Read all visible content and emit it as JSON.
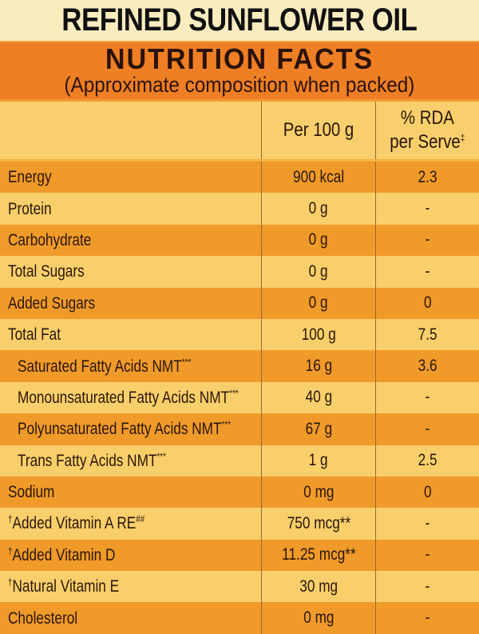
{
  "product_title": "REFINED SUNFLOWER OIL",
  "panel": {
    "heading": "NUTRITION FACTS",
    "subheading": "(Approximate composition when packed)"
  },
  "colors": {
    "title_band": "#fbecbf",
    "heading_band": "#ef7f24",
    "row_dark": "#f09a2a",
    "row_light": "#f9cf6b"
  },
  "table": {
    "columns": [
      "",
      "Per 100 g",
      "% RDA per Serve‡"
    ],
    "header": {
      "col2": "Per 100 g",
      "col3_line1": "% RDA",
      "col3_line2": "per Serve",
      "col3_mark": "‡"
    },
    "rows": [
      {
        "prefix": "",
        "nutrient": "Energy",
        "suffix": "",
        "per_100g": "900 kcal",
        "rda": "2.3"
      },
      {
        "prefix": "",
        "nutrient": "Protein",
        "suffix": "",
        "per_100g": "0 g",
        "rda": "-"
      },
      {
        "prefix": "",
        "nutrient": "Carbohydrate",
        "suffix": "",
        "per_100g": "0 g",
        "rda": "-"
      },
      {
        "prefix": "",
        "nutrient": "Total Sugars",
        "suffix": "",
        "per_100g": "0 g",
        "rda": "-"
      },
      {
        "prefix": "",
        "nutrient": "Added Sugars",
        "suffix": "",
        "per_100g": "0 g",
        "rda": "0"
      },
      {
        "prefix": "",
        "nutrient": "Total Fat",
        "suffix": "",
        "per_100g": "100 g",
        "rda": "7.5"
      },
      {
        "prefix": "",
        "nutrient": "Saturated Fatty Acids NMT",
        "suffix": "***",
        "per_100g": "16 g",
        "rda": "3.6"
      },
      {
        "prefix": "",
        "nutrient": "Monounsaturated Fatty Acids NMT",
        "suffix": "***",
        "per_100g": "40 g",
        "rda": "-"
      },
      {
        "prefix": "",
        "nutrient": "Polyunsaturated Fatty Acids NMT",
        "suffix": "***",
        "per_100g": "67 g",
        "rda": "-"
      },
      {
        "prefix": "",
        "nutrient": "Trans Fatty Acids NMT",
        "suffix": "***",
        "per_100g": "1 g",
        "rda": "2.5"
      },
      {
        "prefix": "",
        "nutrient": "Sodium",
        "suffix": "",
        "per_100g": "0 mg",
        "rda": "0"
      },
      {
        "prefix": "†",
        "nutrient": "Added Vitamin A RE",
        "suffix": "##",
        "per_100g": "750 mcg**",
        "rda": "-"
      },
      {
        "prefix": "†",
        "nutrient": "Added Vitamin D",
        "suffix": "",
        "per_100g": "11.25 mcg**",
        "rda": "-"
      },
      {
        "prefix": "†",
        "nutrient": "Natural Vitamin E",
        "suffix": "",
        "per_100g": "30 mg",
        "rda": "-"
      },
      {
        "prefix": "",
        "nutrient": "Cholesterol",
        "suffix": "",
        "per_100g": "0 mg",
        "rda": "-"
      }
    ]
  }
}
